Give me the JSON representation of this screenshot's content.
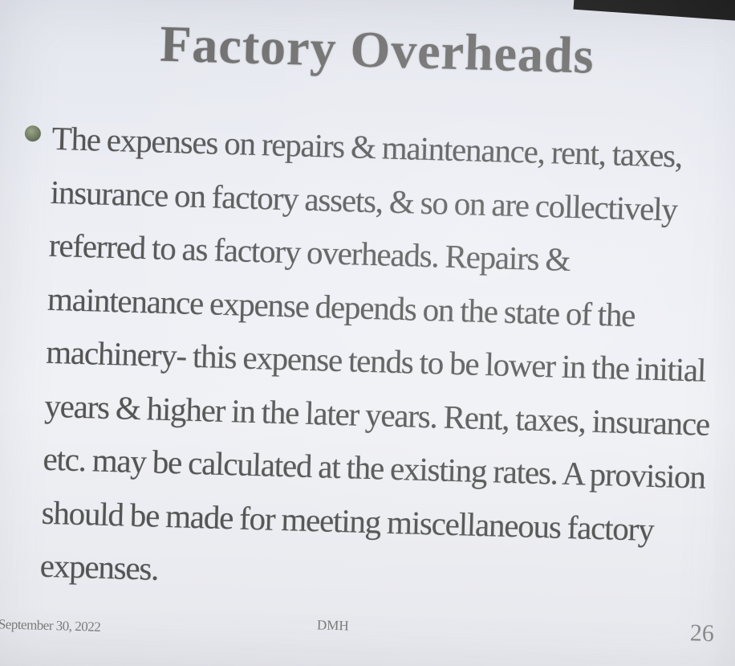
{
  "slide": {
    "title": "Factory Overheads",
    "bullet_icon": "bullet-circle-icon",
    "body": "The expenses on repairs & maintenance, rent, taxes, insurance on factory assets, & so on are collectively referred to as factory overheads. Repairs & maintenance expense depends on the state of the machinery- this expense tends to be lower in the initial years & higher in the later years. Rent, taxes, insurance etc. may be calculated at the existing rates. A provision should be made for meeting miscellaneous factory expenses.",
    "footer": {
      "date": "September 30, 2022",
      "author": "DMH",
      "page_number": "26"
    }
  },
  "colors": {
    "slide_background": "#eceef4",
    "title_text": "#6e6e6e",
    "body_text": "#555555",
    "bullet": "#6f7a62"
  }
}
